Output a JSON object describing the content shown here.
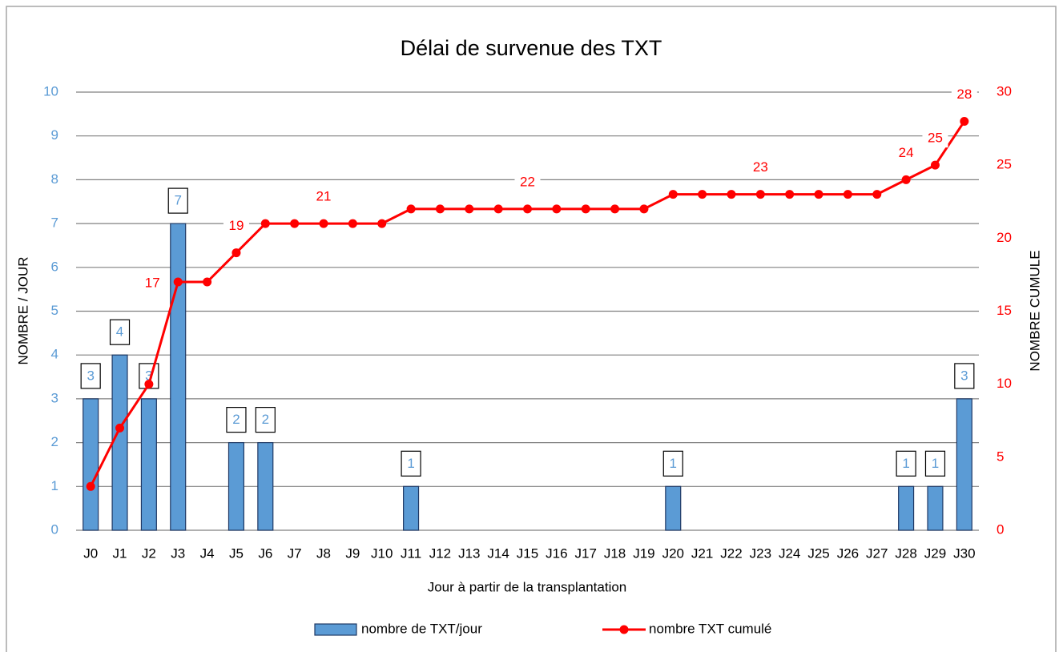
{
  "chart_data": {
    "type": "bar",
    "title": "Délai de survenue des TXT",
    "x_label": "Jour à partir de la transplantation",
    "y_label": "NOMBRE / JOUR",
    "y2_label": "NOMBRE CUMULE",
    "categories": [
      "J0",
      "J1",
      "J2",
      "J3",
      "J4",
      "J5",
      "J6",
      "J7",
      "J8",
      "J9",
      "J10",
      "J11",
      "J12",
      "J13",
      "J14",
      "J15",
      "J16",
      "J17",
      "J18",
      "J19",
      "J20",
      "J21",
      "J22",
      "J23",
      "J24",
      "J25",
      "J26",
      "J27",
      "J28",
      "J29",
      "J30"
    ],
    "series": [
      {
        "name": "nombre de TXT/jour",
        "type": "bar",
        "color": "#5b9bd5",
        "values": [
          3,
          4,
          3,
          7,
          0,
          2,
          2,
          0,
          0,
          0,
          0,
          1,
          0,
          0,
          0,
          0,
          0,
          0,
          0,
          0,
          1,
          0,
          0,
          0,
          0,
          0,
          0,
          0,
          1,
          1,
          3
        ],
        "value_labels": [
          "3",
          "4",
          "3",
          "7",
          null,
          "2",
          "2",
          null,
          null,
          null,
          null,
          "1",
          null,
          null,
          null,
          null,
          null,
          null,
          null,
          null,
          "1",
          null,
          null,
          null,
          null,
          null,
          null,
          null,
          "1",
          "1",
          "3"
        ]
      },
      {
        "name": "nombre TXT cumulé",
        "type": "line",
        "axis": "y2",
        "color": "#ff0000",
        "values": [
          3,
          7,
          10,
          17,
          17,
          19,
          21,
          21,
          21,
          21,
          21,
          22,
          22,
          22,
          22,
          22,
          22,
          22,
          22,
          22,
          23,
          23,
          23,
          23,
          23,
          23,
          23,
          23,
          24,
          25,
          28
        ],
        "value_labels": [
          null,
          null,
          null,
          "17",
          null,
          "19",
          null,
          null,
          "21",
          null,
          null,
          null,
          null,
          null,
          null,
          "22",
          null,
          null,
          null,
          null,
          null,
          null,
          null,
          "23",
          null,
          null,
          null,
          null,
          "24",
          "25",
          "28"
        ]
      }
    ],
    "ylim": [
      0,
      10
    ],
    "yticks": [
      0,
      1,
      2,
      3,
      4,
      5,
      6,
      7,
      8,
      9,
      10
    ],
    "y2lim": [
      0,
      30
    ],
    "y2ticks": [
      0,
      5,
      10,
      15,
      20,
      25,
      30
    ],
    "grid": true,
    "legend": "bottom"
  }
}
